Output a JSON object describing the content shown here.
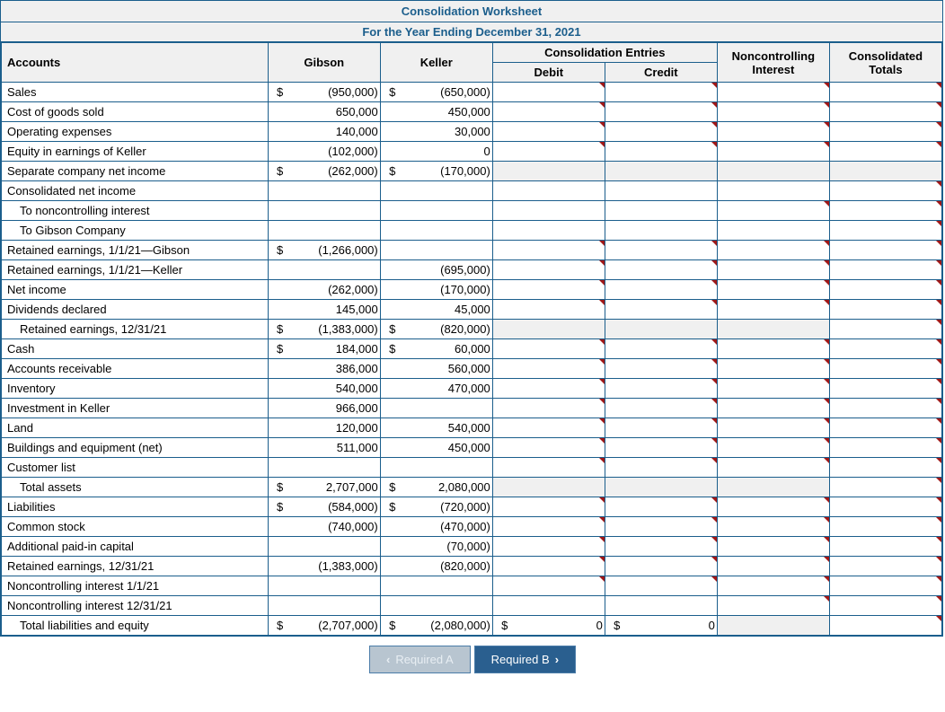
{
  "title_top": "Consolidation Worksheet",
  "subtitle": "For the Year Ending December 31, 2021",
  "header_consolidation": "Consolidation Entries",
  "headers": {
    "accounts": "Accounts",
    "gibson": "Gibson",
    "keller": "Keller",
    "debit": "Debit",
    "credit": "Credit",
    "nci": "Noncontrolling Interest",
    "totals": "Consolidated Totals"
  },
  "rows": [
    {
      "acct": "Sales",
      "indent": 0,
      "gibson_sym": "$",
      "gibson": "(950,000)",
      "keller_sym": "$",
      "keller": "(650,000)",
      "inputs": [
        "d",
        "c",
        "n",
        "t"
      ]
    },
    {
      "acct": "Cost of goods sold",
      "indent": 0,
      "gibson": "650,000",
      "keller": "450,000",
      "inputs": [
        "d",
        "c",
        "n",
        "t"
      ]
    },
    {
      "acct": "Operating expenses",
      "indent": 0,
      "gibson": "140,000",
      "keller": "30,000",
      "inputs": [
        "d",
        "c",
        "n",
        "t"
      ]
    },
    {
      "acct": "Equity in earnings of Keller",
      "indent": 0,
      "gibson": "(102,000)",
      "keller": "0",
      "inputs": [
        "d",
        "c",
        "n",
        "t"
      ]
    },
    {
      "acct": "Separate company net income",
      "indent": 0,
      "gibson_sym": "$",
      "gibson": "(262,000)",
      "keller_sym": "$",
      "keller": "(170,000)",
      "blank": [
        "d",
        "c",
        "n",
        "t"
      ]
    },
    {
      "acct": "Consolidated net income",
      "indent": 0,
      "inputs": [
        "t"
      ]
    },
    {
      "acct": "To noncontrolling interest",
      "indent": 1,
      "inputs": [
        "n",
        "t"
      ]
    },
    {
      "acct": "To Gibson Company",
      "indent": 1,
      "inputs": [
        "t"
      ]
    },
    {
      "acct": "Retained earnings, 1/1/21—Gibson",
      "indent": 0,
      "gibson_sym": "$",
      "gibson": "(1,266,000)",
      "inputs": [
        "d",
        "c",
        "n",
        "t"
      ]
    },
    {
      "acct": "Retained earnings, 1/1/21—Keller",
      "indent": 0,
      "keller": "(695,000)",
      "inputs": [
        "d",
        "c",
        "n",
        "t"
      ]
    },
    {
      "acct": "Net income",
      "indent": 0,
      "gibson": "(262,000)",
      "keller": "(170,000)",
      "inputs": [
        "d",
        "c",
        "n",
        "t"
      ]
    },
    {
      "acct": "Dividends declared",
      "indent": 0,
      "gibson": "145,000",
      "keller": "45,000",
      "inputs": [
        "d",
        "c",
        "n",
        "t"
      ]
    },
    {
      "acct": "Retained earnings, 12/31/21",
      "indent": 1,
      "gibson_sym": "$",
      "gibson": "(1,383,000)",
      "keller_sym": "$",
      "keller": "(820,000)",
      "blank": [
        "d",
        "c",
        "n"
      ],
      "inputs": [
        "t"
      ]
    },
    {
      "acct": "Cash",
      "indent": 0,
      "gibson_sym": "$",
      "gibson": "184,000",
      "keller_sym": "$",
      "keller": "60,000",
      "inputs": [
        "d",
        "c",
        "n",
        "t"
      ]
    },
    {
      "acct": "Accounts receivable",
      "indent": 0,
      "gibson": "386,000",
      "keller": "560,000",
      "inputs": [
        "d",
        "c",
        "n",
        "t"
      ]
    },
    {
      "acct": "Inventory",
      "indent": 0,
      "gibson": "540,000",
      "keller": "470,000",
      "inputs": [
        "d",
        "c",
        "n",
        "t"
      ]
    },
    {
      "acct": "Investment in Keller",
      "indent": 0,
      "gibson": "966,000",
      "inputs": [
        "d",
        "c",
        "n",
        "t"
      ]
    },
    {
      "acct": "Land",
      "indent": 0,
      "gibson": "120,000",
      "keller": "540,000",
      "inputs": [
        "d",
        "c",
        "n",
        "t"
      ]
    },
    {
      "acct": "Buildings and equipment (net)",
      "indent": 0,
      "gibson": "511,000",
      "keller": "450,000",
      "inputs": [
        "d",
        "c",
        "n",
        "t"
      ]
    },
    {
      "acct": "Customer list",
      "indent": 0,
      "inputs": [
        "d",
        "c",
        "n",
        "t"
      ]
    },
    {
      "acct": "Total assets",
      "indent": 1,
      "gibson_sym": "$",
      "gibson": "2,707,000",
      "keller_sym": "$",
      "keller": "2,080,000",
      "blank": [
        "d",
        "c",
        "n"
      ],
      "inputs": [
        "t"
      ]
    },
    {
      "acct": "Liabilities",
      "indent": 0,
      "gibson_sym": "$",
      "gibson": "(584,000)",
      "keller_sym": "$",
      "keller": "(720,000)",
      "inputs": [
        "d",
        "c",
        "n",
        "t"
      ]
    },
    {
      "acct": "Common stock",
      "indent": 0,
      "gibson": "(740,000)",
      "keller": "(470,000)",
      "inputs": [
        "d",
        "c",
        "n",
        "t"
      ]
    },
    {
      "acct": "Additional paid-in capital",
      "indent": 0,
      "keller": "(70,000)",
      "inputs": [
        "d",
        "c",
        "n",
        "t"
      ]
    },
    {
      "acct": "Retained earnings, 12/31/21",
      "indent": 0,
      "gibson": "(1,383,000)",
      "keller": "(820,000)",
      "inputs": [
        "d",
        "c",
        "n",
        "t"
      ]
    },
    {
      "acct": "Noncontrolling interest 1/1/21",
      "indent": 0,
      "inputs": [
        "d",
        "c",
        "n",
        "t"
      ]
    },
    {
      "acct": "Noncontrolling interest 12/31/21",
      "indent": 0,
      "inputs": [
        "n",
        "t"
      ]
    },
    {
      "acct": "Total liabilities and equity",
      "indent": 1,
      "gibson_sym": "$",
      "gibson": "(2,707,000)",
      "keller_sym": "$",
      "keller": "(2,080,000)",
      "debit_sym": "$",
      "debit": "0",
      "credit_sym": "$",
      "credit": "0",
      "blank": [
        "n"
      ],
      "inputs": [
        "t"
      ]
    }
  ],
  "nav": {
    "prev": "Required A",
    "next": "Required B"
  },
  "colors": {
    "border": "#1b5e8c",
    "header_bg": "#f0f0f0",
    "marker": "#a01818",
    "btn_active": "#2a5f8f",
    "btn_disabled_bg": "#b8c5d0"
  }
}
